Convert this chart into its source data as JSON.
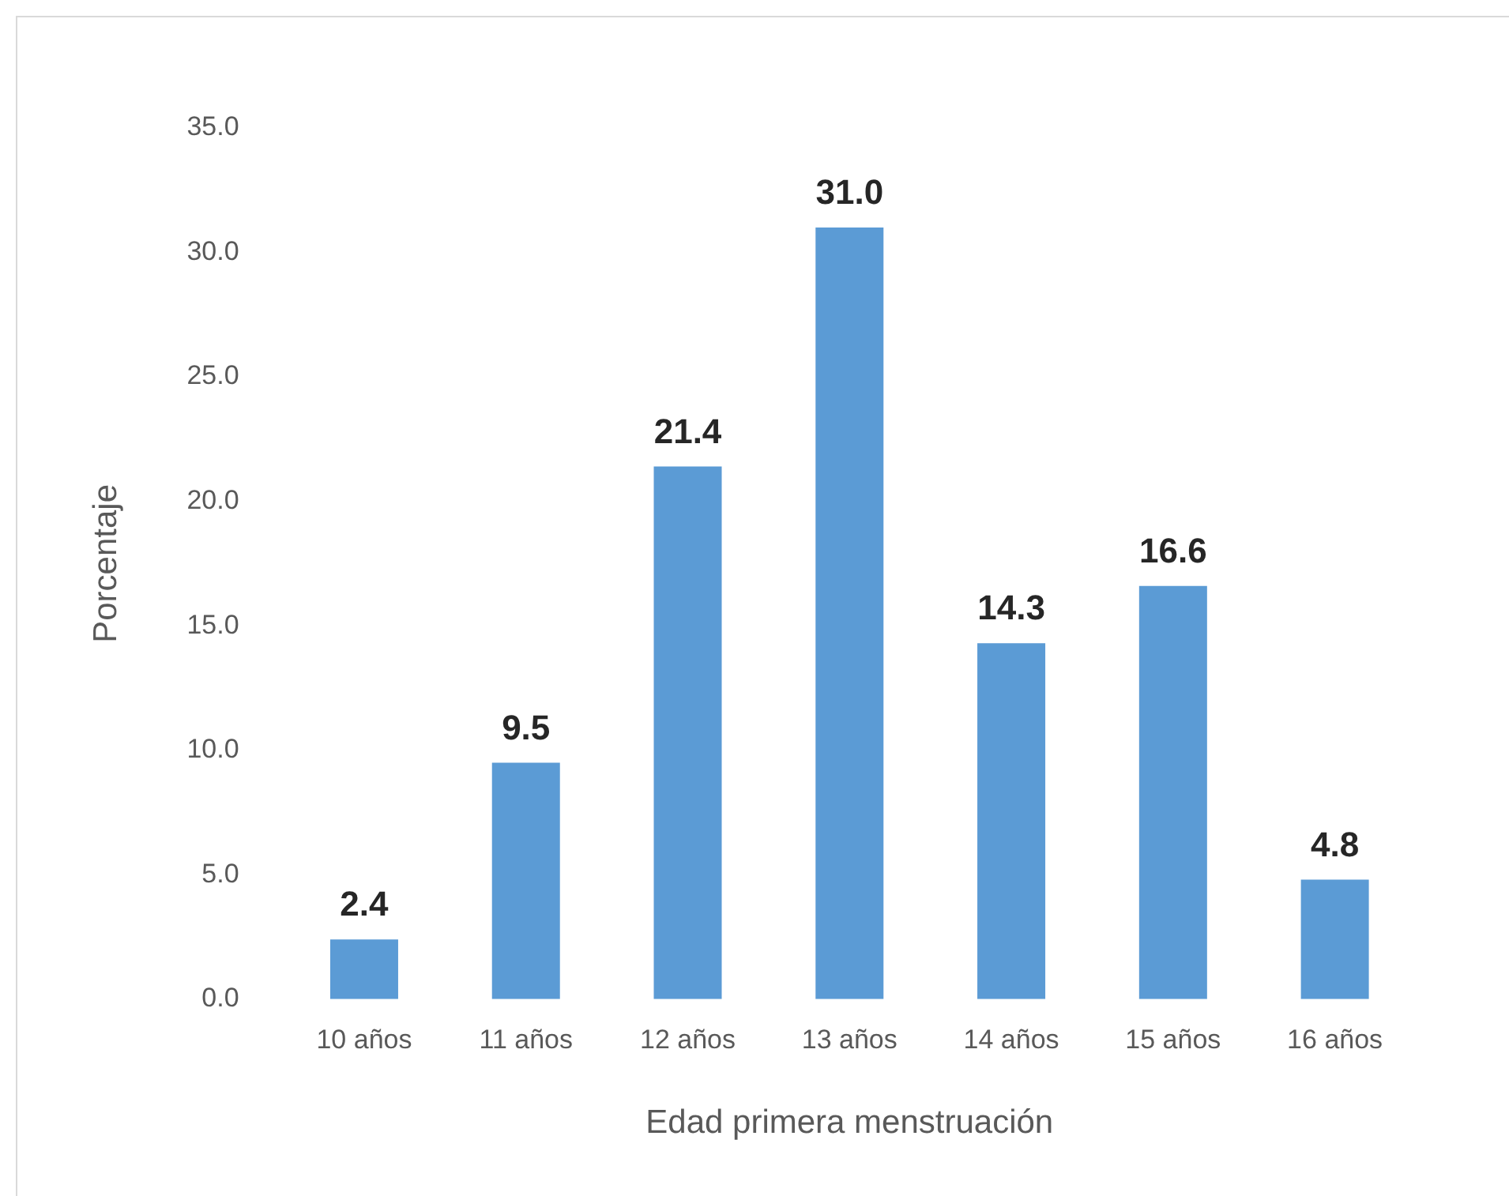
{
  "chart_data": {
    "type": "bar",
    "xlabel": "Edad primera menstruación",
    "ylabel": "Porcentaje",
    "categories": [
      "10 años",
      "11 años",
      "12 años",
      "13 años",
      "14 años",
      "15 años",
      "16 años"
    ],
    "values": [
      2.4,
      9.5,
      21.4,
      31.0,
      14.3,
      16.6,
      4.8
    ],
    "value_labels": [
      "2.4",
      "9.5",
      "21.4",
      "31.0",
      "14.3",
      "16.6",
      "4.8"
    ],
    "color": "#5b9bd5",
    "ylim": [
      0,
      35
    ],
    "yticks": [
      {
        "value": 0,
        "label": "0.0"
      },
      {
        "value": 5,
        "label": "5.0"
      },
      {
        "value": 10,
        "label": "10.0"
      },
      {
        "value": 15,
        "label": "15.0"
      },
      {
        "value": 20,
        "label": "20.0"
      },
      {
        "value": 25,
        "label": "25.0"
      },
      {
        "value": 30,
        "label": "30.0"
      },
      {
        "value": 35,
        "label": "35.0"
      }
    ],
    "grid": false,
    "legend": false
  }
}
